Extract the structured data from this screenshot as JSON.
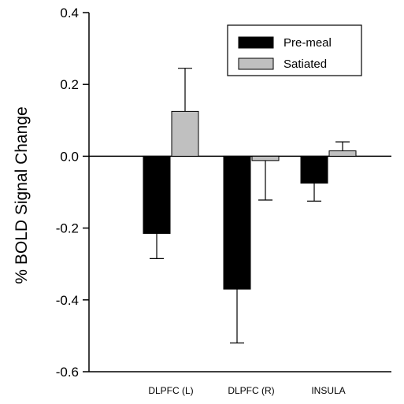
{
  "chart_data": {
    "type": "bar",
    "categories": [
      "DLPFC (L)",
      "DLPFC (R)",
      "INSULA"
    ],
    "series": [
      {
        "name": "Pre-meal",
        "values": [
          -0.215,
          -0.37,
          -0.075
        ],
        "error": [
          0.07,
          0.15,
          0.05
        ],
        "color": "#000000"
      },
      {
        "name": "Satiated",
        "values": [
          0.125,
          -0.012,
          0.015
        ],
        "error": [
          0.12,
          0.11,
          0.025
        ],
        "color": "#c0c0c0"
      }
    ],
    "xlabel": "",
    "ylabel": "% BOLD Signal Change",
    "ylim": [
      -0.6,
      0.4
    ],
    "yticks": [
      -0.6,
      -0.4,
      -0.2,
      0.0,
      0.2,
      0.4
    ],
    "ytick_labels": [
      "-0.6",
      "-0.4",
      "-0.2",
      "0.0",
      "0.2",
      "0.4"
    ],
    "grid": false,
    "legend_position": "top-right"
  }
}
